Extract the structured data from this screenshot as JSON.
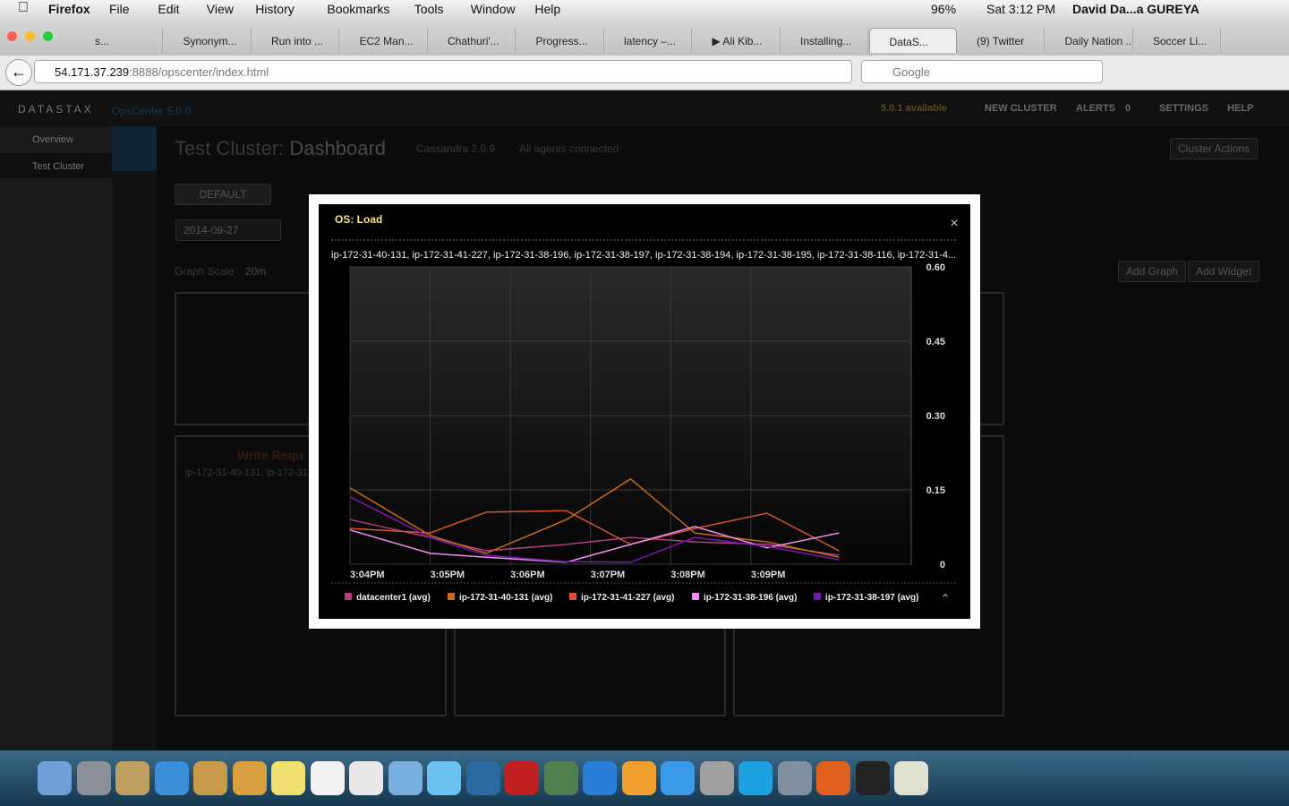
{
  "menu_bar": {
    "app": "Firefox",
    "items": [
      "File",
      "Edit",
      "View",
      "History",
      "Bookmarks",
      "Tools",
      "Window",
      "Help"
    ],
    "battery": "96%",
    "clock": "Sat 3:12 PM",
    "user": "David Da...a GUREYA"
  },
  "tabs": [
    "s...",
    "Synonym...",
    "Run into ...",
    "EC2 Man...",
    "Chathuri'...",
    "Progress...",
    "latency –...",
    "▶ Ali Kib...",
    "Installing...",
    "DataS...",
    "(9) Twitter",
    "Daily Nation ...",
    "Soccer Li..."
  ],
  "address": {
    "host": "54.171.37.239",
    "path": ":8888/opscenter/index.html",
    "search": "Google"
  },
  "opscenter": {
    "brand": "DATASTAX",
    "product": "OpsCenter 5.0.0",
    "update": "5.0.1 available",
    "new_cluster": "NEW CLUSTER",
    "alerts": "ALERTS",
    "alerts_count": 0,
    "settings": "SETTINGS",
    "help": "HELP"
  },
  "sidebar": [
    "Overview",
    "Test Cluster"
  ],
  "dashboard": {
    "title": "Test Cluster:",
    "subtitle": "Dashboard",
    "version": "Cassandra 2.0.9",
    "agents": "All agents connected",
    "cluster_actions": "Cluster Actions",
    "tab": "DEFAULT",
    "date": "2014-09-27",
    "graph_scale": "Graph Scale",
    "scale_value": "20m",
    "add_graph": "Add Graph",
    "add_widget": "Add Widget",
    "widget_title": "Write Requ",
    "widget_nodes": "ip-172-31-40-131, ip-172-31"
  },
  "modal": {
    "nodes": "ip-172-31-40-131, ip-172-31-41-227, ip-172-31-38-196, ip-172-31-38-197, ip-172-31-38-194, ip-172-31-38-195, ip-172-31-38-116, ip-172-31-4..."
  },
  "chart_data": {
    "type": "line",
    "title": "OS: Load",
    "grid": true,
    "x": [
      904,
      905,
      905.7,
      906.7,
      907.5,
      908.3,
      909.2,
      910.1
    ],
    "xlim": [
      904,
      911
    ],
    "xticks": [
      {
        "value": 904,
        "label": "3:04PM"
      },
      {
        "value": 905,
        "label": "3:05PM"
      },
      {
        "value": 906,
        "label": "3:06PM"
      },
      {
        "value": 907,
        "label": "3:07PM"
      },
      {
        "value": 908,
        "label": "3:08PM"
      },
      {
        "value": 909,
        "label": "3:09PM"
      }
    ],
    "ylim": [
      0,
      0.6
    ],
    "yticks": [
      0,
      0.15,
      {
        "value": 0.3,
        "label": "0.30"
      },
      0.45,
      {
        "value": 0.6,
        "label": "0.60"
      }
    ],
    "series": [
      {
        "name": "datacenter1 (avg)",
        "color": "#b0407f",
        "values": [
          0.09,
          0.054,
          0.027,
          0.04,
          0.054,
          0.045,
          0.04,
          0.018
        ]
      },
      {
        "name": "ip-172-31-40-131 (avg)",
        "color": "#c86a1a",
        "values": [
          0.154,
          0.058,
          0.022,
          0.09,
          0.172,
          0.063,
          0.045,
          0.014
        ]
      },
      {
        "name": "ip-172-31-41-227 (avg)",
        "color": "#d9532c",
        "values": [
          0.072,
          0.063,
          0.105,
          0.108,
          0.04,
          0.072,
          0.103,
          0.027
        ]
      },
      {
        "name": "ip-172-31-38-196 (avg)",
        "color": "#f08ef0",
        "values": [
          0.069,
          0.022,
          0.014,
          0.004,
          0.04,
          0.076,
          0.033,
          0.063
        ]
      },
      {
        "name": "ip-172-31-38-197 (avg)",
        "color": "#7a1aaa",
        "values": [
          0.136,
          0.054,
          0.018,
          0.005,
          0.004,
          0.054,
          0.036,
          0.009
        ]
      }
    ]
  }
}
